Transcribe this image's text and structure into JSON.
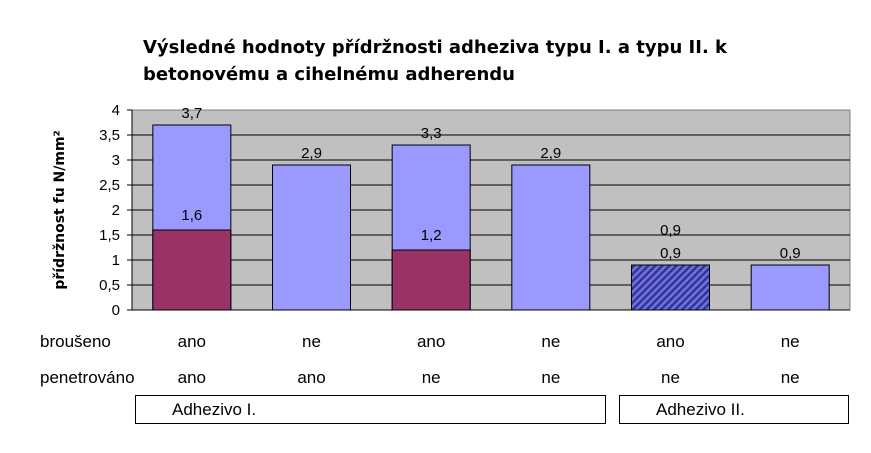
{
  "chart_data": {
    "type": "bar",
    "title": "Výsledné hodnoty přídržnosti adheziva typu I. a typu II. k betonovému a cihelnému adherendu",
    "ylabel": "přídržnost fu N/mm²",
    "ylim": [
      0,
      4
    ],
    "yticks": [
      "0",
      "0,5",
      "1",
      "1,5",
      "2",
      "2,5",
      "3",
      "3,5",
      "4"
    ],
    "grid": true,
    "bars": [
      {
        "total": 3.7,
        "total_label": "3,7",
        "inner": 1.6,
        "inner_label": "1,6",
        "inner_style": "solid"
      },
      {
        "total": 2.9,
        "total_label": "2,9"
      },
      {
        "total": 3.3,
        "total_label": "3,3",
        "inner": 1.2,
        "inner_label": "1,2",
        "inner_style": "solid"
      },
      {
        "total": 2.9,
        "total_label": "2,9"
      },
      {
        "total": 0.9,
        "total_label": "0,9",
        "inner": 0.9,
        "inner_label": "0,9",
        "inner_style": "hatched"
      },
      {
        "total": 0.9,
        "total_label": "0,9"
      }
    ],
    "colors": {
      "outer": "#9999ff",
      "inner": "#993366",
      "hatch_a": "#333399",
      "hatch_b": "#6f72d8",
      "plot_bg": "#c0c0c0"
    }
  },
  "table": {
    "rows": [
      {
        "label": "broušeno",
        "values": [
          "ano",
          "ne",
          "ano",
          "ne",
          "ano",
          "ne"
        ]
      },
      {
        "label": "penetrováno",
        "values": [
          "ano",
          "ano",
          "ne",
          "ne",
          "ne",
          "ne"
        ]
      }
    ],
    "groups": [
      "Adhezivo I.",
      "Adhezivo II."
    ]
  }
}
